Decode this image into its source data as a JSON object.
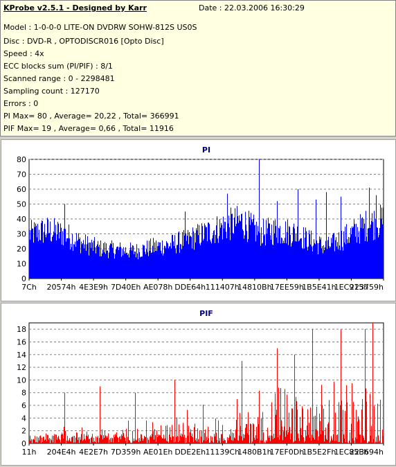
{
  "header": {
    "title": "KProbe v2.5.1 - Designed by Karr",
    "date": "Date : 22.03.2006 16:30:29",
    "lines": [
      "Model : 1-0-0-0 LITE-ON DVDRW SOHW-812S  US0S",
      "Disc : DVD-R , OPTODISCR016 [Opto Disc]",
      "Speed : 4x",
      "ECC blocks sum (PI/PIF) : 8/1",
      "Scanned range : 0 - 2298481",
      "Sampling count : 127170",
      "Errors : 0",
      "PI Max= 80 , Average= 20,22 , Total= 366991",
      "PIF Max= 19 , Average= 0,66 , Total= 11916"
    ]
  },
  "chart_data": [
    {
      "type": "bar",
      "title": "PI",
      "color": "#0000ff",
      "ylim": [
        0,
        80
      ],
      "yticks": [
        0,
        10,
        20,
        30,
        40,
        50,
        60,
        70,
        80
      ],
      "xticks": [
        "7Ch",
        "20574h",
        "4E3E9h",
        "7D40Eh",
        "AE078h",
        "DDE64h",
        "111407h",
        "14810Bh",
        "17EE59h",
        "1B5E41h",
        "1EC915h",
        "223759h"
      ],
      "grid": "dashed",
      "profile": [
        [
          0,
          34
        ],
        [
          0.05,
          37
        ],
        [
          0.1,
          34
        ],
        [
          0.15,
          27
        ],
        [
          0.2,
          23
        ],
        [
          0.25,
          22
        ],
        [
          0.3,
          21
        ],
        [
          0.35,
          24
        ],
        [
          0.4,
          26
        ],
        [
          0.45,
          30
        ],
        [
          0.5,
          35
        ],
        [
          0.55,
          40
        ],
        [
          0.6,
          44
        ],
        [
          0.63,
          38
        ],
        [
          0.66,
          35
        ],
        [
          0.7,
          37
        ],
        [
          0.75,
          35
        ],
        [
          0.8,
          28
        ],
        [
          0.84,
          24
        ],
        [
          0.88,
          30
        ],
        [
          0.92,
          36
        ],
        [
          0.96,
          42
        ],
        [
          1,
          44
        ]
      ],
      "peaks": [
        [
          0.1,
          50
        ],
        [
          0.44,
          45
        ],
        [
          0.5,
          51
        ],
        [
          0.56,
          57
        ],
        [
          0.65,
          80
        ],
        [
          0.7,
          52
        ],
        [
          0.76,
          60
        ],
        [
          0.81,
          53
        ],
        [
          0.84,
          58
        ],
        [
          0.88,
          55
        ],
        [
          0.96,
          61
        ],
        [
          0.98,
          56
        ]
      ]
    },
    {
      "type": "bar",
      "title": "PIF",
      "color": "#ff0000",
      "ylim": [
        0,
        19
      ],
      "yticks": [
        0,
        2,
        4,
        6,
        8,
        10,
        12,
        14,
        16,
        18
      ],
      "xticks": [
        "11h",
        "204E4h",
        "4E2E7h",
        "7D359h",
        "AE01Eh",
        "DDE2Eh",
        "11139Ch",
        "1480B1h",
        "17EF0Dh",
        "1B5E2Fh",
        "1EC85Eh",
        "223694h"
      ],
      "grid": "dashed",
      "profile": [
        [
          0,
          1.5
        ],
        [
          0.2,
          2
        ],
        [
          0.4,
          3
        ],
        [
          0.5,
          4
        ],
        [
          0.6,
          5
        ],
        [
          0.7,
          6
        ],
        [
          0.8,
          6
        ],
        [
          0.9,
          7
        ],
        [
          1,
          7
        ]
      ],
      "peaks": [
        [
          0.1,
          8
        ],
        [
          0.2,
          9
        ],
        [
          0.3,
          8
        ],
        [
          0.41,
          10
        ],
        [
          0.5,
          12
        ],
        [
          0.6,
          13
        ],
        [
          0.7,
          15
        ],
        [
          0.75,
          14
        ],
        [
          0.8,
          18
        ],
        [
          0.88,
          18
        ],
        [
          0.95,
          18
        ],
        [
          0.97,
          19
        ]
      ]
    }
  ]
}
